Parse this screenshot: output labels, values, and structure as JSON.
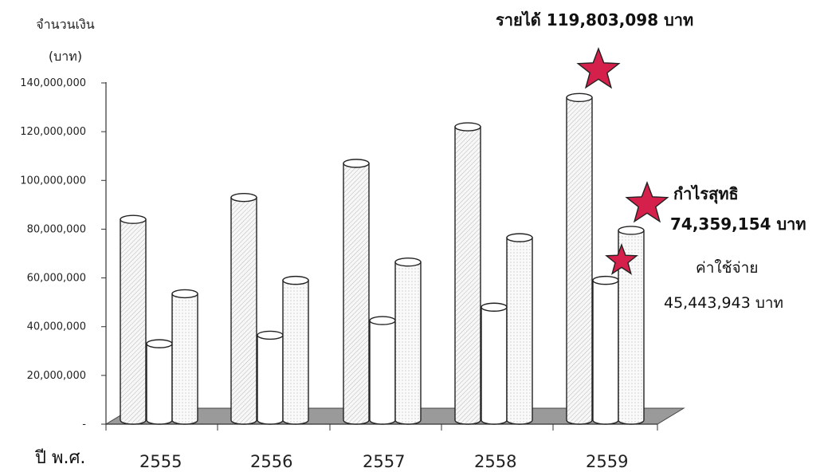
{
  "chart_data": {
    "type": "bar",
    "ylabel_line1": "จำนวนเงิน",
    "ylabel_line2": "(บาท)",
    "xlabel": "ปี พ.ศ.",
    "categories": [
      "2555",
      "2556",
      "2557",
      "2558",
      "2559"
    ],
    "series": [
      {
        "values": [
          84000000,
          93000000,
          107000000,
          122000000,
          134000000
        ]
      },
      {
        "values": [
          33000000,
          36500000,
          42500000,
          48000000,
          59000000
        ]
      },
      {
        "values": [
          53500000,
          59000000,
          66500000,
          76500000,
          79500000
        ]
      }
    ],
    "ylim": [
      0,
      140000000
    ],
    "yticks": [
      {
        "value": 0,
        "label": "-"
      },
      {
        "value": 20000000,
        "label": "20,000,000"
      },
      {
        "value": 40000000,
        "label": "40,000,000"
      },
      {
        "value": 60000000,
        "label": "60,000,000"
      },
      {
        "value": 80000000,
        "label": "80,000,000"
      },
      {
        "value": 100000000,
        "label": "100,000,000"
      },
      {
        "value": 120000000,
        "label": "120,000,000"
      },
      {
        "value": 140000000,
        "label": "140,000,000"
      }
    ],
    "grid": false,
    "annotations": {
      "revenue": "รายได้ 119,803,098 บาท",
      "profit_title": "กำไรสุทธิ",
      "profit_value": "74,359,154 บาท",
      "expense_title": "ค่าใช้จ่าย",
      "expense_value": "45,443,943 บาท"
    },
    "colors": {
      "star": "#d4204a",
      "floor": "#9a9a9a",
      "bar_fill": "#f7f7f7",
      "bar_stroke": "#222222"
    }
  }
}
